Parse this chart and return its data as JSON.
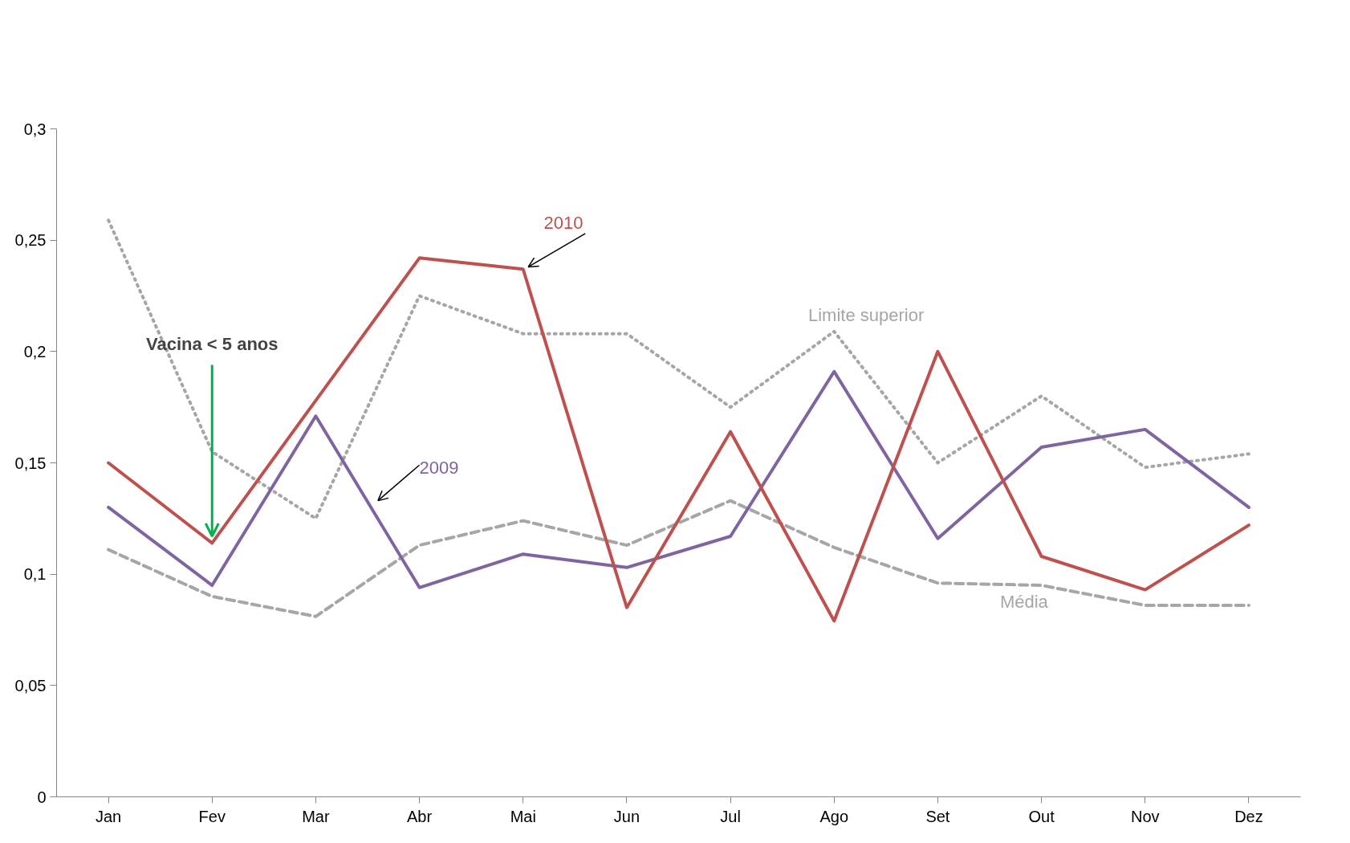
{
  "chart_data": {
    "type": "line",
    "categories": [
      "Jan",
      "Fev",
      "Mar",
      "Abr",
      "Mai",
      "Jun",
      "Jul",
      "Ago",
      "Set",
      "Out",
      "Nov",
      "Dez"
    ],
    "series": [
      {
        "name": "Limite superior",
        "color": "#a6a6a6",
        "line_style": "dotted",
        "values": [
          0.259,
          0.155,
          0.125,
          0.225,
          0.208,
          0.208,
          0.175,
          0.209,
          0.15,
          0.18,
          0.148,
          0.154
        ]
      },
      {
        "name": "Média",
        "color": "#a6a6a6",
        "line_style": "dashed",
        "values": [
          0.111,
          0.09,
          0.081,
          0.113,
          0.124,
          0.113,
          0.133,
          0.112,
          0.096,
          0.095,
          0.086,
          0.086
        ]
      },
      {
        "name": "2009",
        "color": "#8064a2",
        "line_style": "solid",
        "values": [
          0.13,
          0.095,
          0.171,
          0.094,
          0.109,
          0.103,
          0.117,
          0.191,
          0.116,
          0.157,
          0.165,
          0.13
        ]
      },
      {
        "name": "2010",
        "color": "#c0504d",
        "line_style": "solid",
        "values": [
          0.15,
          0.114,
          0.178,
          0.242,
          0.237,
          0.085,
          0.164,
          0.079,
          0.2,
          0.108,
          0.093,
          0.122
        ]
      }
    ],
    "ylim": [
      0,
      0.3
    ],
    "yticks": [
      0,
      {
        "value": 0.05,
        "label": "0,05"
      },
      {
        "value": 0.1,
        "label": "0,1"
      },
      {
        "value": 0.15,
        "label": "0,15"
      },
      {
        "value": 0.2,
        "label": "0,2"
      },
      {
        "value": 0.25,
        "label": "0,25"
      },
      {
        "value": 0.3,
        "label": "0,3"
      }
    ],
    "grid": false,
    "marker": "none",
    "annotations": [
      {
        "text": "Vacina < 5 anos",
        "x": "Fev",
        "y": 0.114
      }
    ]
  }
}
